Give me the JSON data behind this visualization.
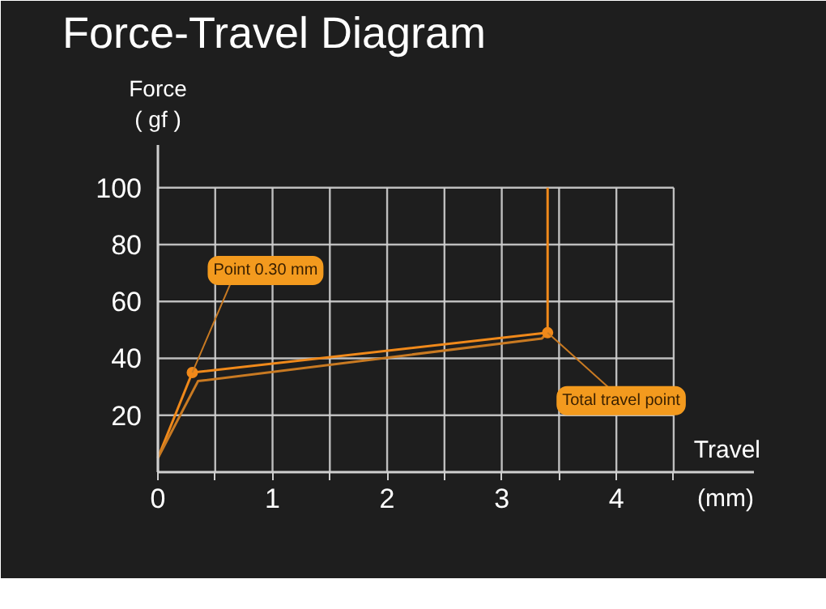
{
  "chart_data": {
    "type": "line",
    "title": "Force-Travel Diagram",
    "xlabel": "Travel\n(mm)",
    "ylabel": "Force\n( gf )",
    "series": [
      {
        "x": [
          0,
          0.3,
          3.4,
          3.4
        ],
        "values": [
          5,
          35,
          49,
          100
        ],
        "color": "#f0891a"
      },
      {
        "x": [
          0,
          0.35,
          3.35,
          3.4
        ],
        "values": [
          5,
          32,
          47,
          49
        ],
        "color": "#c97a22"
      }
    ],
    "xlim": [
      0,
      5.2
    ],
    "ylim": [
      0,
      115
    ],
    "xticks": [
      0,
      {
        "value": 0.5,
        "label": null
      },
      1,
      {
        "value": 1.5,
        "label": null
      },
      2,
      {
        "value": 2.5,
        "label": null
      },
      3,
      {
        "value": 3.5,
        "label": null
      },
      4,
      {
        "value": 4.5,
        "label": null
      }
    ],
    "yticks": [
      20,
      40,
      60,
      80,
      100
    ],
    "grid": true,
    "line_style": "solid",
    "annotations": [
      {
        "text": "Point 0.30 mm",
        "x": 0.3,
        "y": 35
      },
      {
        "text": "Total travel point",
        "x": 3.4,
        "y": 49
      }
    ]
  }
}
